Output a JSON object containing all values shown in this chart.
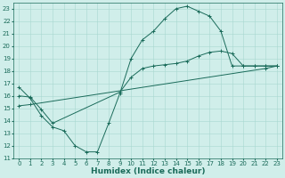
{
  "title": "",
  "xlabel": "Humidex (Indice chaleur)",
  "bg_color": "#d0eeea",
  "line_color": "#1a6b5a",
  "grid_color": "#a8d8d0",
  "xlim": [
    -0.5,
    23.5
  ],
  "ylim": [
    11,
    23.5
  ],
  "xticks": [
    0,
    1,
    2,
    3,
    4,
    5,
    6,
    7,
    8,
    9,
    10,
    11,
    12,
    13,
    14,
    15,
    16,
    17,
    18,
    19,
    20,
    21,
    22,
    23
  ],
  "yticks": [
    11,
    12,
    13,
    14,
    15,
    16,
    17,
    18,
    19,
    20,
    21,
    22,
    23
  ],
  "line1_x": [
    0,
    1,
    2,
    3,
    4,
    5,
    6,
    7,
    8,
    9,
    10,
    11,
    12,
    13,
    14,
    15,
    16,
    17,
    18,
    19,
    20,
    21,
    22,
    23
  ],
  "line1_y": [
    16.7,
    15.8,
    14.4,
    13.5,
    13.2,
    12.0,
    11.5,
    11.5,
    13.8,
    16.2,
    19.0,
    20.5,
    21.2,
    22.2,
    23.0,
    23.2,
    22.8,
    22.4,
    21.2,
    18.4,
    18.4,
    18.4,
    18.4,
    18.4
  ],
  "line2_x": [
    0,
    1,
    2,
    3,
    9,
    10,
    11,
    12,
    13,
    14,
    15,
    16,
    17,
    18,
    19,
    20,
    21,
    22,
    23
  ],
  "line2_y": [
    16.0,
    15.9,
    14.9,
    13.8,
    16.3,
    17.5,
    18.2,
    18.4,
    18.5,
    18.6,
    18.8,
    19.2,
    19.5,
    19.6,
    19.4,
    18.4,
    18.4,
    18.4,
    18.4
  ],
  "line3_x": [
    0,
    1,
    22,
    23
  ],
  "line3_y": [
    15.2,
    15.3,
    18.2,
    18.4
  ],
  "figsize": [
    3.2,
    2.0
  ],
  "dpi": 100,
  "tick_fontsize": 5,
  "label_fontsize": 6.5
}
